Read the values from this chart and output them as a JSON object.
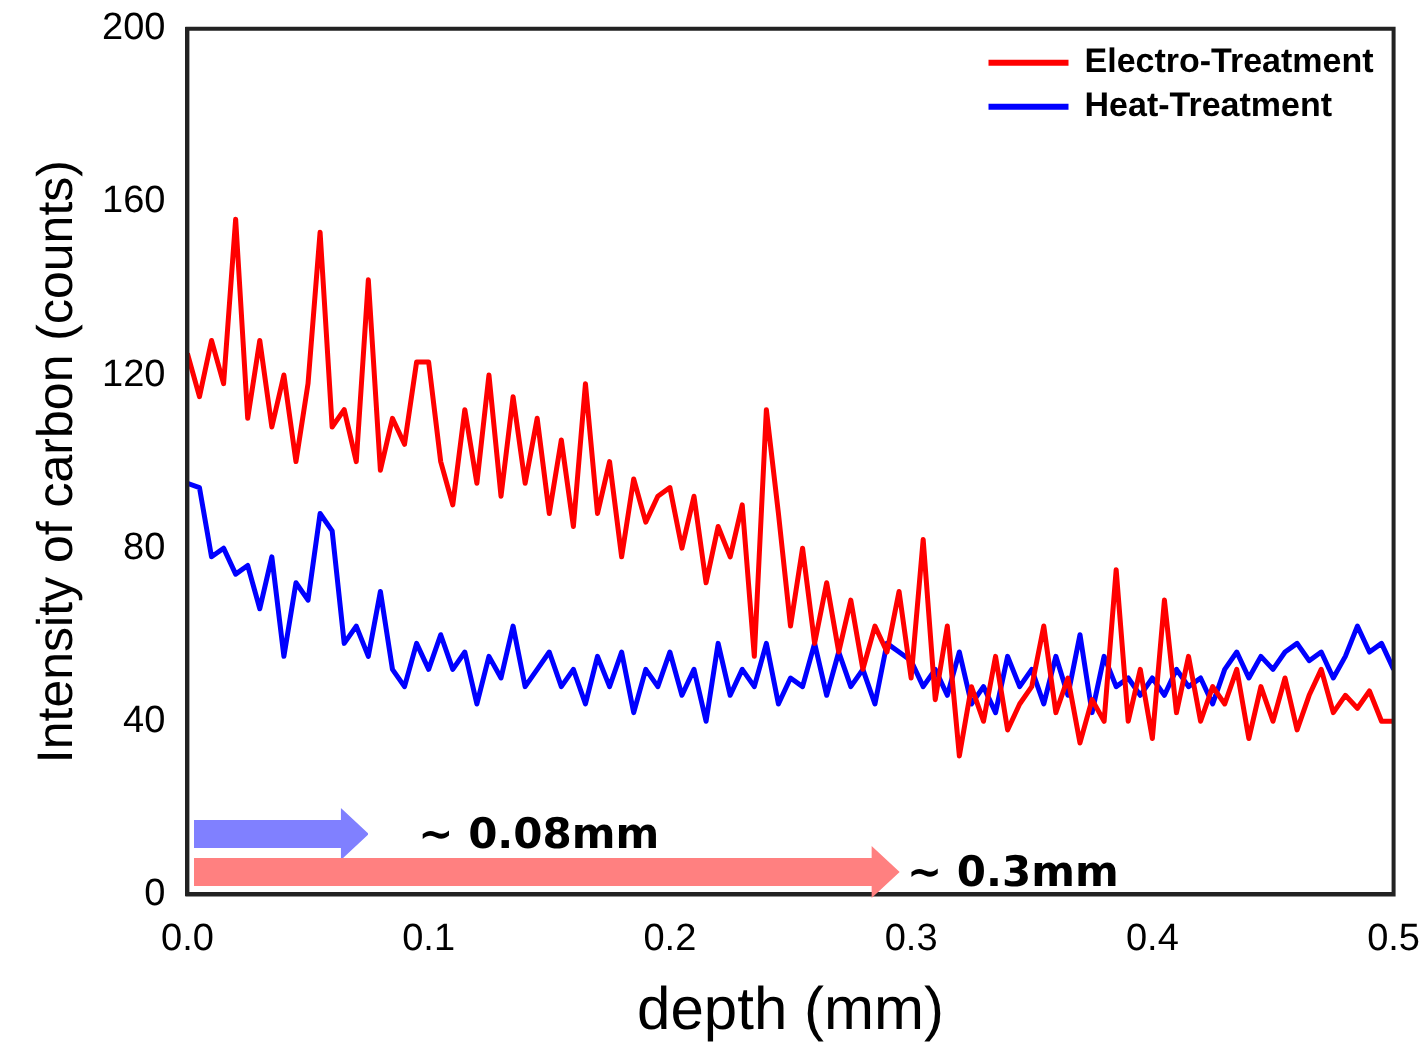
{
  "chart_data": {
    "type": "line",
    "xlabel": "depth (mm)",
    "ylabel": "Intensity of carbon (counts)",
    "xlim": [
      0,
      0.5
    ],
    "xticks": [
      {
        "value": 0,
        "label": "0.0"
      },
      {
        "value": 0.1,
        "label": "0.1"
      },
      {
        "value": 0.2,
        "label": "0.2"
      },
      {
        "value": 0.3,
        "label": "0.3"
      },
      {
        "value": 0.4,
        "label": "0.4"
      },
      {
        "value": 0.5,
        "label": "0.5"
      }
    ],
    "ylim": [
      0,
      200
    ],
    "yticks": [
      0,
      40,
      80,
      120,
      160,
      200
    ],
    "x": [
      0,
      0.005,
      0.01,
      0.015,
      0.02,
      0.025,
      0.03,
      0.035,
      0.04,
      0.045,
      0.05,
      0.055,
      0.06,
      0.065,
      0.07,
      0.075,
      0.08,
      0.085,
      0.09,
      0.095,
      0.1,
      0.105,
      0.11,
      0.115,
      0.12,
      0.125,
      0.13,
      0.135,
      0.14,
      0.145,
      0.15,
      0.155,
      0.16,
      0.165,
      0.17,
      0.175,
      0.18,
      0.185,
      0.19,
      0.195,
      0.2,
      0.205,
      0.21,
      0.215,
      0.22,
      0.225,
      0.23,
      0.235,
      0.24,
      0.245,
      0.25,
      0.255,
      0.26,
      0.265,
      0.27,
      0.275,
      0.28,
      0.285,
      0.29,
      0.295,
      0.3,
      0.305,
      0.31,
      0.315,
      0.32,
      0.325,
      0.33,
      0.335,
      0.34,
      0.345,
      0.35,
      0.355,
      0.36,
      0.365,
      0.37,
      0.375,
      0.38,
      0.385,
      0.39,
      0.395,
      0.4,
      0.405,
      0.41,
      0.415,
      0.42,
      0.425,
      0.43,
      0.435,
      0.44,
      0.445,
      0.45,
      0.455,
      0.46,
      0.465,
      0.47,
      0.475,
      0.48,
      0.485,
      0.49,
      0.495,
      0.5
    ],
    "series": [
      {
        "name": "Electro-Treatment",
        "color": "#ff0000",
        "values": [
          125,
          115,
          128,
          118,
          156,
          110,
          128,
          108,
          120,
          100,
          118,
          153,
          108,
          112,
          100,
          142,
          98,
          110,
          104,
          123,
          123,
          100,
          90,
          112,
          95,
          120,
          92,
          115,
          95,
          110,
          88,
          105,
          85,
          118,
          88,
          100,
          78,
          96,
          86,
          92,
          94,
          80,
          92,
          72,
          85,
          78,
          90,
          55,
          112,
          88,
          62,
          80,
          58,
          72,
          56,
          68,
          52,
          62,
          56,
          70,
          50,
          82,
          45,
          62,
          32,
          48,
          40,
          55,
          38,
          44,
          48,
          62,
          42,
          50,
          35,
          45,
          40,
          75,
          40,
          52,
          36,
          68,
          42,
          55,
          40,
          48,
          44,
          52,
          36,
          48,
          40,
          50,
          38,
          46,
          52,
          42,
          46,
          43,
          47,
          40,
          40
        ]
      },
      {
        "name": "Heat-Treatment",
        "color": "#0000ff",
        "values": [
          95,
          94,
          78,
          80,
          74,
          76,
          66,
          78,
          55,
          72,
          68,
          88,
          84,
          58,
          62,
          55,
          70,
          52,
          48,
          58,
          52,
          60,
          52,
          56,
          44,
          55,
          50,
          62,
          48,
          52,
          56,
          48,
          52,
          44,
          55,
          48,
          56,
          42,
          52,
          48,
          56,
          46,
          52,
          40,
          58,
          46,
          52,
          48,
          58,
          44,
          50,
          48,
          58,
          46,
          56,
          48,
          52,
          44,
          58,
          56,
          54,
          48,
          52,
          46,
          56,
          44,
          48,
          42,
          55,
          48,
          52,
          44,
          55,
          46,
          60,
          42,
          55,
          48,
          50,
          46,
          50,
          46,
          52,
          48,
          50,
          44,
          52,
          56,
          50,
          55,
          52,
          56,
          58,
          54,
          56,
          50,
          55,
          62,
          56,
          58,
          52
        ]
      }
    ],
    "annotations": [
      "~ 0.08mm",
      "~ 0.3mm"
    ],
    "legend": "top right",
    "grid": false,
    "marker": "none",
    "line_style": "solid"
  }
}
